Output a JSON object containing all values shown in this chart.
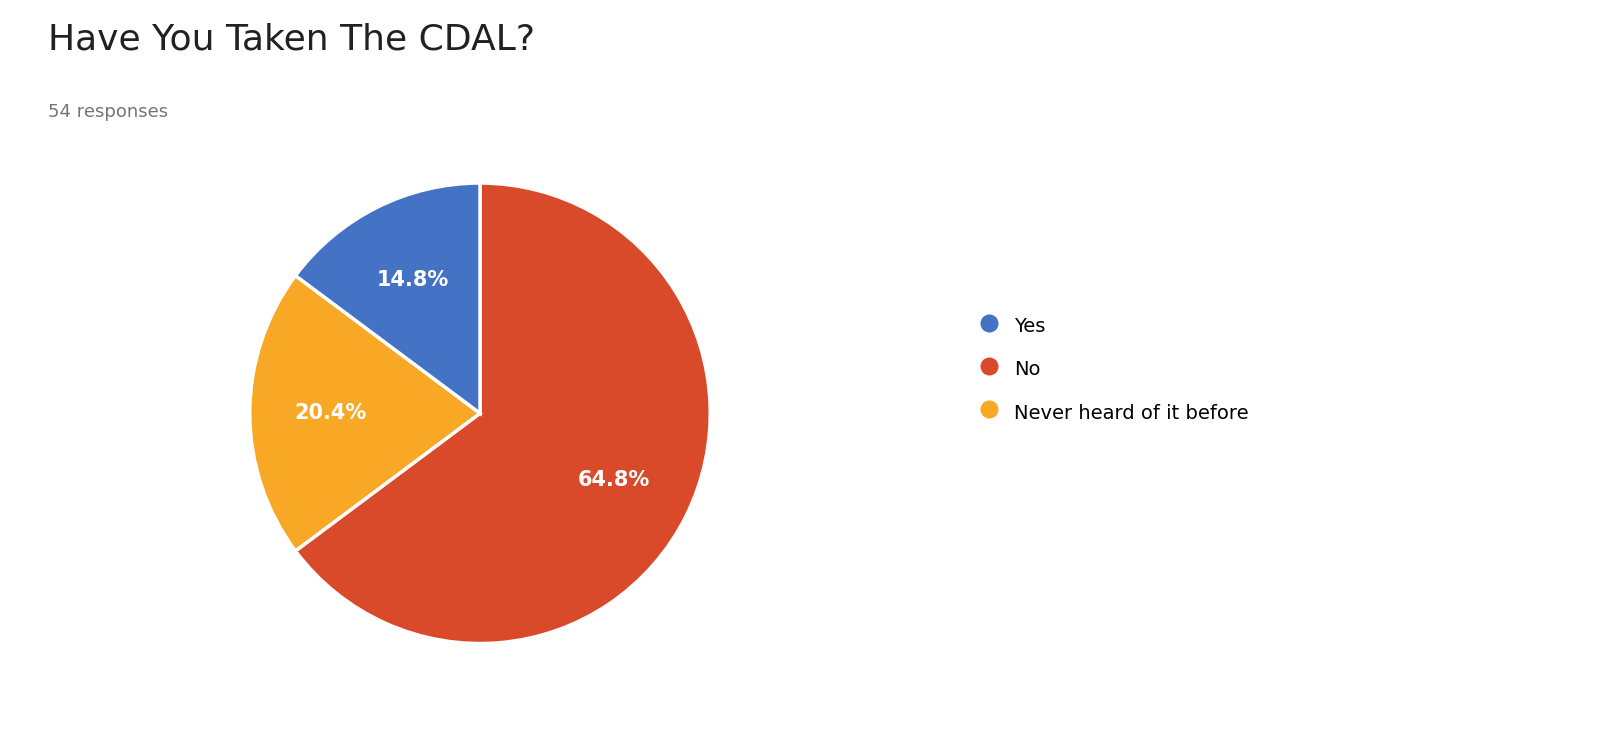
{
  "title": "Have You Taken The CDAL?",
  "subtitle": "54 responses",
  "labels": [
    "Yes",
    "No",
    "Never heard of it before"
  ],
  "values": [
    14.8,
    64.8,
    20.4
  ],
  "colors": [
    "#4472C4",
    "#D94A2B",
    "#F9A825"
  ],
  "autopct_fontsize": 15,
  "title_fontsize": 26,
  "subtitle_fontsize": 13,
  "legend_fontsize": 14,
  "background_color": "#ffffff",
  "text_color_title": "#212121",
  "text_color_subtitle": "#757575",
  "pie_values_ordered": [
    64.8,
    20.4,
    14.8
  ],
  "pie_colors_ordered": [
    "#D94A2B",
    "#F9A825",
    "#4472C4"
  ],
  "startangle": 90,
  "counterclock": false
}
